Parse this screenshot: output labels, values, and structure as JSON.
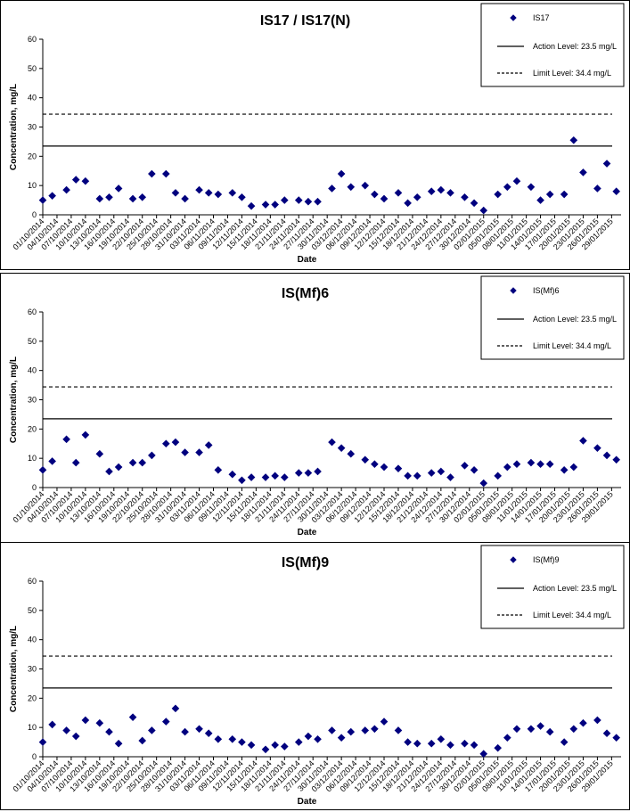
{
  "chart_data": [
    {
      "type": "scatter",
      "title": "IS17 / IS17(N)",
      "xlabel": "Date",
      "ylabel": "Concentration, mg/L",
      "ylim": [
        0,
        60
      ],
      "yticks": [
        0,
        10,
        20,
        30,
        40,
        50,
        60
      ],
      "grid": false,
      "legend_position": "top-right",
      "x_tick_labels": [
        "01/10/2014",
        "04/10/2014",
        "07/10/2014",
        "10/10/2014",
        "13/10/2014",
        "16/10/2014",
        "19/10/2014",
        "22/10/2014",
        "25/10/2014",
        "28/10/2014",
        "31/10/2014",
        "03/11/2014",
        "06/11/2014",
        "09/11/2014",
        "12/11/2014",
        "15/11/2014",
        "18/11/2014",
        "21/11/2014",
        "24/11/2014",
        "27/11/2014",
        "30/11/2014",
        "03/12/2014",
        "06/12/2014",
        "09/12/2014",
        "12/12/2014",
        "15/12/2014",
        "18/12/2014",
        "21/12/2014",
        "24/12/2014",
        "27/12/2014",
        "30/12/2014",
        "02/01/2015",
        "05/01/2015",
        "08/01/2015",
        "11/01/2015",
        "14/01/2015",
        "17/01/2015",
        "20/01/2015",
        "23/01/2015",
        "26/01/2015",
        "29/01/2015"
      ],
      "series": [
        {
          "name": "IS17",
          "marker": "diamond",
          "color": "#00007f",
          "x": [
            "01/10/2014",
            "03/10/2014",
            "06/10/2014",
            "08/10/2014",
            "10/10/2014",
            "13/10/2014",
            "15/10/2014",
            "17/10/2014",
            "20/10/2014",
            "22/10/2014",
            "24/10/2014",
            "27/10/2014",
            "29/10/2014",
            "31/10/2014",
            "03/11/2014",
            "05/11/2014",
            "07/11/2014",
            "10/11/2014",
            "12/11/2014",
            "14/11/2014",
            "17/11/2014",
            "19/11/2014",
            "21/11/2014",
            "24/11/2014",
            "26/11/2014",
            "28/11/2014",
            "01/12/2014",
            "03/12/2014",
            "05/12/2014",
            "08/12/2014",
            "10/12/2014",
            "12/12/2014",
            "15/12/2014",
            "17/12/2014",
            "19/12/2014",
            "22/12/2014",
            "24/12/2014",
            "26/12/2014",
            "29/12/2014",
            "31/12/2014",
            "02/01/2015",
            "05/01/2015",
            "07/01/2015",
            "09/01/2015",
            "12/01/2015",
            "14/01/2015",
            "16/01/2015",
            "19/01/2015",
            "21/01/2015",
            "23/01/2015",
            "26/01/2015",
            "28/01/2015",
            "30/01/2015"
          ],
          "y": [
            5.0,
            6.5,
            8.5,
            12.0,
            11.5,
            5.5,
            6.0,
            9.0,
            5.5,
            6.0,
            14.0,
            14.0,
            7.5,
            5.5,
            8.5,
            7.5,
            7.0,
            7.5,
            6.0,
            3.0,
            3.5,
            3.5,
            5.0,
            5.0,
            4.5,
            4.5,
            9.0,
            14.0,
            9.5,
            10.0,
            7.0,
            5.5,
            7.5,
            4.0,
            6.0,
            8.0,
            8.5,
            7.5,
            6.0,
            4.0,
            1.5,
            7.0,
            9.5,
            11.5,
            9.5,
            5.0,
            7.0,
            7.0,
            25.5,
            14.5,
            9.0,
            17.5,
            8.0
          ]
        },
        {
          "name": "Action Level: 23.5 mg/L",
          "type": "hline",
          "style": "solid",
          "y": 23.5
        },
        {
          "name": "Limit Level: 34.4 mg/L",
          "type": "hline",
          "style": "dashed",
          "y": 34.4
        }
      ]
    },
    {
      "type": "scatter",
      "title": "IS(Mf)6",
      "xlabel": "Date",
      "ylabel": "Concentration, mg/L",
      "ylim": [
        0,
        60
      ],
      "yticks": [
        0,
        10,
        20,
        30,
        40,
        50,
        60
      ],
      "grid": false,
      "legend_position": "top-right",
      "x_tick_labels": [
        "01/10/2014",
        "04/10/2014",
        "07/10/2014",
        "10/10/2014",
        "13/10/2014",
        "16/10/2014",
        "19/10/2014",
        "22/10/2014",
        "25/10/2014",
        "28/10/2014",
        "31/10/2014",
        "03/11/2014",
        "06/11/2014",
        "09/11/2014",
        "12/11/2014",
        "15/11/2014",
        "18/11/2014",
        "21/11/2014",
        "24/11/2014",
        "27/11/2014",
        "30/11/2014",
        "03/12/2014",
        "06/12/2014",
        "09/12/2014",
        "12/12/2014",
        "15/12/2014",
        "18/12/2014",
        "21/12/2014",
        "24/12/2014",
        "27/12/2014",
        "30/12/2014",
        "02/01/2015",
        "05/01/2015",
        "08/01/2015",
        "11/01/2015",
        "14/01/2015",
        "17/01/2015",
        "20/01/2015",
        "23/01/2015",
        "26/01/2015",
        "29/01/2015"
      ],
      "series": [
        {
          "name": "IS(Mf)6",
          "marker": "diamond",
          "color": "#00007f",
          "x": [
            "01/10/2014",
            "03/10/2014",
            "06/10/2014",
            "08/10/2014",
            "10/10/2014",
            "13/10/2014",
            "15/10/2014",
            "17/10/2014",
            "20/10/2014",
            "22/10/2014",
            "24/10/2014",
            "27/10/2014",
            "29/10/2014",
            "31/10/2014",
            "03/11/2014",
            "05/11/2014",
            "07/11/2014",
            "10/11/2014",
            "12/11/2014",
            "14/11/2014",
            "17/11/2014",
            "19/11/2014",
            "21/11/2014",
            "24/11/2014",
            "26/11/2014",
            "28/11/2014",
            "01/12/2014",
            "03/12/2014",
            "05/12/2014",
            "08/12/2014",
            "10/12/2014",
            "12/12/2014",
            "15/12/2014",
            "17/12/2014",
            "19/12/2014",
            "22/12/2014",
            "24/12/2014",
            "26/12/2014",
            "29/12/2014",
            "31/12/2014",
            "02/01/2015",
            "05/01/2015",
            "07/01/2015",
            "09/01/2015",
            "12/01/2015",
            "14/01/2015",
            "16/01/2015",
            "19/01/2015",
            "21/01/2015",
            "23/01/2015",
            "26/01/2015",
            "28/01/2015",
            "30/01/2015"
          ],
          "y": [
            6.0,
            9.0,
            16.5,
            8.5,
            18.0,
            11.5,
            5.5,
            7.0,
            8.5,
            8.5,
            11.0,
            15.0,
            15.5,
            12.0,
            12.0,
            14.5,
            6.0,
            4.5,
            2.5,
            3.5,
            3.5,
            4.0,
            3.5,
            5.0,
            5.0,
            5.5,
            15.5,
            13.5,
            11.5,
            9.5,
            8.0,
            7.0,
            6.5,
            4.0,
            4.0,
            5.0,
            5.5,
            3.5,
            7.5,
            6.0,
            1.5,
            4.0,
            7.0,
            8.0,
            8.5,
            8.0,
            8.0,
            6.0,
            7.0,
            16.0,
            13.5,
            11.0,
            9.5
          ]
        },
        {
          "name": "Action Level: 23.5 mg/L",
          "type": "hline",
          "style": "solid",
          "y": 23.5
        },
        {
          "name": "Limit Level: 34.4 mg/L",
          "type": "hline",
          "style": "dashed",
          "y": 34.4
        }
      ]
    },
    {
      "type": "scatter",
      "title": "IS(Mf)9",
      "xlabel": "Date",
      "ylabel": "Concentration, mg/L",
      "ylim": [
        0,
        60
      ],
      "yticks": [
        0,
        10,
        20,
        30,
        40,
        50,
        60
      ],
      "grid": false,
      "legend_position": "top-right",
      "x_tick_labels": [
        "01/10/2014",
        "04/10/2014",
        "07/10/2014",
        "10/10/2014",
        "13/10/2014",
        "16/10/2014",
        "19/10/2014",
        "22/10/2014",
        "25/10/2014",
        "28/10/2014",
        "31/10/2014",
        "03/11/2014",
        "06/11/2014",
        "09/11/2014",
        "12/11/2014",
        "15/11/2014",
        "18/11/2014",
        "21/11/2014",
        "24/11/2014",
        "27/11/2014",
        "30/11/2014",
        "03/12/2014",
        "06/12/2014",
        "09/12/2014",
        "12/12/2014",
        "15/12/2014",
        "18/12/2014",
        "21/12/2014",
        "24/12/2014",
        "27/12/2014",
        "30/12/2014",
        "02/01/2015",
        "05/01/2015",
        "08/01/2015",
        "11/01/2015",
        "14/01/2015",
        "17/01/2015",
        "20/01/2015",
        "23/01/2015",
        "26/01/2015",
        "29/01/2015"
      ],
      "series": [
        {
          "name": "IS(Mf)9",
          "marker": "diamond",
          "color": "#00007f",
          "x": [
            "01/10/2014",
            "03/10/2014",
            "06/10/2014",
            "08/10/2014",
            "10/10/2014",
            "13/10/2014",
            "15/10/2014",
            "17/10/2014",
            "20/10/2014",
            "22/10/2014",
            "24/10/2014",
            "27/10/2014",
            "29/10/2014",
            "31/10/2014",
            "03/11/2014",
            "05/11/2014",
            "07/11/2014",
            "10/11/2014",
            "12/11/2014",
            "14/11/2014",
            "17/11/2014",
            "19/11/2014",
            "21/11/2014",
            "24/11/2014",
            "26/11/2014",
            "28/11/2014",
            "01/12/2014",
            "03/12/2014",
            "05/12/2014",
            "08/12/2014",
            "10/12/2014",
            "12/12/2014",
            "15/12/2014",
            "17/12/2014",
            "19/12/2014",
            "22/12/2014",
            "24/12/2014",
            "26/12/2014",
            "29/12/2014",
            "31/12/2014",
            "02/01/2015",
            "05/01/2015",
            "07/01/2015",
            "09/01/2015",
            "12/01/2015",
            "14/01/2015",
            "16/01/2015",
            "19/01/2015",
            "21/01/2015",
            "23/01/2015",
            "26/01/2015",
            "28/01/2015",
            "30/01/2015"
          ],
          "y": [
            5.0,
            11.0,
            9.0,
            7.0,
            12.5,
            11.5,
            8.5,
            4.5,
            13.5,
            5.5,
            9.0,
            12.0,
            16.5,
            8.5,
            9.5,
            8.0,
            6.0,
            6.0,
            5.0,
            4.0,
            2.5,
            4.0,
            3.5,
            5.0,
            7.0,
            6.0,
            9.0,
            6.5,
            8.5,
            9.0,
            9.5,
            12.0,
            9.0,
            5.0,
            4.5,
            4.5,
            6.0,
            4.0,
            4.5,
            4.0,
            1.0,
            3.0,
            6.5,
            9.5,
            9.5,
            10.5,
            8.5,
            5.0,
            9.5,
            11.5,
            12.5,
            8.0,
            6.5
          ]
        },
        {
          "name": "Action Level: 23.5 mg/L",
          "type": "hline",
          "style": "solid",
          "y": 23.5
        },
        {
          "name": "Limit Level: 34.4 mg/L",
          "type": "hline",
          "style": "dashed",
          "y": 34.4
        }
      ]
    }
  ]
}
